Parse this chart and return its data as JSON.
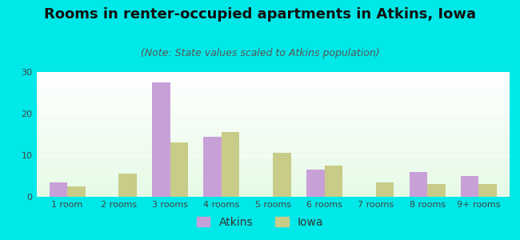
{
  "title": "Rooms in renter-occupied apartments in Atkins, Iowa",
  "subtitle": "(Note: State values scaled to Atkins population)",
  "categories": [
    "1 room",
    "2 rooms",
    "3 rooms",
    "4 rooms",
    "5 rooms",
    "6 rooms",
    "7 rooms",
    "8 rooms",
    "9+ rooms"
  ],
  "atkins_values": [
    3.5,
    0,
    27.5,
    14.5,
    0,
    6.5,
    0,
    6.0,
    5.0
  ],
  "iowa_values": [
    2.5,
    5.5,
    13.0,
    15.5,
    10.5,
    7.5,
    3.5,
    3.0,
    3.0
  ],
  "atkins_color": "#c8a0d8",
  "iowa_color": "#c8cc88",
  "background_outer": "#00e8e8",
  "ylim": [
    0,
    30
  ],
  "yticks": [
    0,
    10,
    20,
    30
  ],
  "bar_width": 0.35,
  "title_fontsize": 13,
  "subtitle_fontsize": 9,
  "tick_fontsize": 8,
  "legend_fontsize": 10
}
